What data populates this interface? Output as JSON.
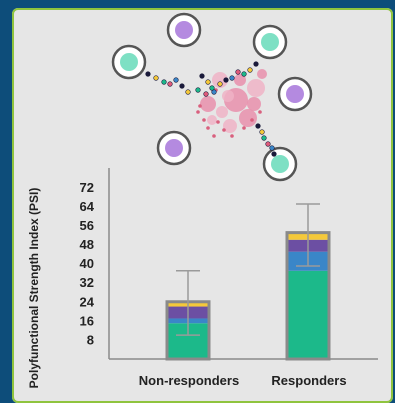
{
  "chart_data": {
    "type": "bar",
    "stacked": true,
    "error_bars": true,
    "title": "",
    "xlabel": "",
    "ylabel": "Polyfunctional Strength Index (PSI)",
    "yticks": [
      8,
      16,
      24,
      32,
      40,
      48,
      56,
      64,
      72
    ],
    "ylim": [
      0,
      78
    ],
    "categories": [
      "Non-responders",
      "Responders"
    ],
    "series": [
      {
        "color": "#1cb98a",
        "values": [
          15,
          37
        ]
      },
      {
        "color": "#3a86c8",
        "values": [
          2,
          8
        ]
      },
      {
        "color": "#6c4fa3",
        "values": [
          5,
          5
        ]
      },
      {
        "color": "#f5c93a",
        "values": [
          2,
          3
        ]
      }
    ],
    "totals": [
      24,
      53
    ],
    "error_low": [
      10,
      39
    ],
    "error_high": [
      37,
      65
    ],
    "colors": {
      "outline": "#8a8a8a",
      "background": "#e6e6e6",
      "frame": "#0d4d7a",
      "card_border": "#8fc43e"
    }
  },
  "illustration": {
    "cells": [
      {
        "icon": "purple-cell-icon",
        "color": "#b48ae0"
      },
      {
        "icon": "teal-cell-icon",
        "color": "#7ee0c4"
      },
      {
        "icon": "teal-cell-icon",
        "color": "#7ee0c4"
      },
      {
        "icon": "purple-cell-icon",
        "color": "#b48ae0"
      },
      {
        "icon": "purple-cell-icon",
        "color": "#b48ae0"
      },
      {
        "icon": "teal-cell-icon",
        "color": "#7ee0c4"
      }
    ],
    "tumor_icon": "tumor-cluster-icon"
  }
}
